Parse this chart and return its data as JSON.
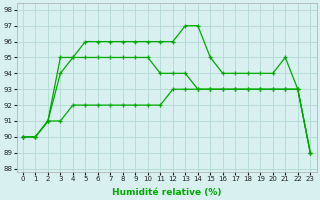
{
  "xlabel": "Humidité relative (%)",
  "background_color": "#d8f0f0",
  "grid_color": "#b8dcd8",
  "line_color": "#00aa00",
  "xlim": [
    -0.5,
    23.5
  ],
  "ylim": [
    87.8,
    98.4
  ],
  "yticks": [
    88,
    89,
    90,
    91,
    92,
    93,
    94,
    95,
    96,
    97,
    98
  ],
  "xticks": [
    0,
    1,
    2,
    3,
    4,
    5,
    6,
    7,
    8,
    9,
    10,
    11,
    12,
    13,
    14,
    15,
    16,
    17,
    18,
    19,
    20,
    21,
    22,
    23
  ],
  "line1_x": [
    0,
    1,
    2,
    3,
    4,
    5,
    6,
    7,
    8,
    9,
    10,
    11,
    12,
    13,
    14,
    15,
    16,
    17,
    18,
    19,
    20,
    21,
    22,
    23
  ],
  "line1_y": [
    90,
    90,
    91,
    95,
    95,
    96,
    96,
    96,
    96,
    96,
    96,
    96,
    96,
    97,
    97,
    95,
    94,
    94,
    94,
    94,
    94,
    95,
    93,
    89
  ],
  "line2_x": [
    0,
    1,
    2,
    3,
    4,
    5,
    6,
    7,
    8,
    9,
    10,
    11,
    12,
    13,
    14,
    15,
    16,
    17,
    18,
    19,
    20,
    21,
    22,
    23
  ],
  "line2_y": [
    90,
    90,
    91,
    91,
    92,
    92,
    92,
    92,
    92,
    92,
    92,
    92,
    93,
    93,
    93,
    93,
    93,
    93,
    93,
    93,
    93,
    93,
    93,
    89
  ],
  "line3_x": [
    0,
    1,
    2,
    3,
    4,
    5,
    6,
    7,
    8,
    9,
    10,
    11,
    12,
    13,
    14,
    15,
    16,
    17,
    18,
    19,
    20,
    21,
    22,
    23
  ],
  "line3_y": [
    90,
    90,
    91,
    94,
    95,
    95,
    95,
    95,
    95,
    95,
    95,
    94,
    94,
    94,
    93,
    93,
    93,
    93,
    93,
    93,
    93,
    93,
    93,
    89
  ]
}
